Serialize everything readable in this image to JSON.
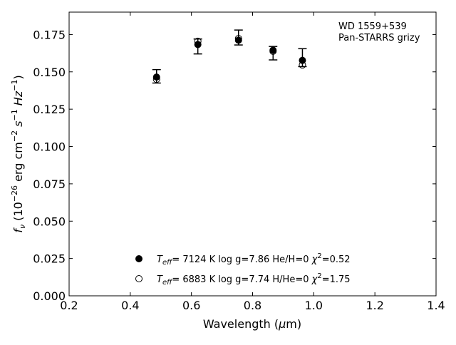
{
  "chart_data": {
    "type": "scatter",
    "title": "",
    "annotation": [
      "WD 1559+539",
      "Pan-STARRS grizy"
    ],
    "xlabel": {
      "main": "Wavelength (",
      "mu": "μ",
      "unit": "m)"
    },
    "ylabel": {
      "f": "f",
      "sub": "ν",
      "open": " (10",
      "exp": "−26",
      "unit": " erg cm",
      "e1": "−2",
      "s": " s",
      "e2": "−1",
      "hz": " Hz",
      "e3": "−1",
      "close": ")"
    },
    "xlim": [
      0.2,
      1.4
    ],
    "ylim": [
      0.0,
      0.19
    ],
    "xticks": [
      0.2,
      0.4,
      0.6,
      0.8,
      1.0,
      1.2,
      1.4
    ],
    "xtick_labels": [
      "0.2",
      "0.4",
      "0.6",
      "0.8",
      "1.0",
      "1.2",
      "1.4"
    ],
    "yticks": [
      0.0,
      0.025,
      0.05,
      0.075,
      0.1,
      0.125,
      0.15,
      0.175
    ],
    "ytick_labels": [
      "0.000",
      "0.025",
      "0.050",
      "0.075",
      "0.100",
      "0.125",
      "0.150",
      "0.175"
    ],
    "grid": false,
    "legend_position": "bottom-center",
    "observed": {
      "x": [
        0.486,
        0.621,
        0.754,
        0.867,
        0.963
      ],
      "y": [
        0.147,
        0.167,
        0.173,
        0.1625,
        0.1595
      ],
      "yerr": [
        0.0045,
        0.005,
        0.005,
        0.0045,
        0.006
      ]
    },
    "series": [
      {
        "marker": "filled",
        "label": {
          "t": "T",
          "sub": "eff",
          "rest": "=  7124 K  log g=7.86  He/H=0  ",
          "chi": "χ",
          "sup": "2",
          "end": "=0.52"
        },
        "x": [
          0.486,
          0.621,
          0.754,
          0.867,
          0.963
        ],
        "y": [
          0.1465,
          0.1683,
          0.1712,
          0.1645,
          0.1577
        ]
      },
      {
        "marker": "open",
        "label": {
          "t": "T",
          "sub": "eff",
          "rest": "=  6883 K  log g=7.74  H/He=0  ",
          "chi": "χ",
          "sup": "2",
          "end": "=1.75"
        },
        "x": [
          0.486,
          0.621,
          0.754,
          0.867,
          0.963
        ],
        "y": [
          0.145,
          0.1705,
          0.1723,
          0.1638,
          0.1546
        ]
      }
    ]
  }
}
